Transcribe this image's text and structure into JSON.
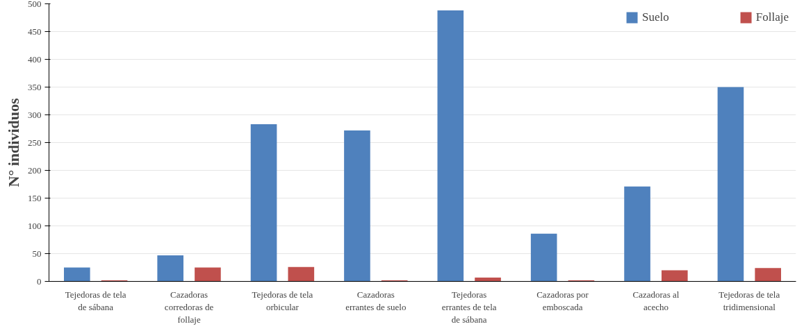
{
  "chart_data": {
    "type": "bar",
    "ylabel": "N° individuos",
    "categories": [
      "Tejedoras de tela de sábana",
      "Cazadoras corredoras de follaje",
      "Tejedoras de tela orbicular",
      "Cazadoras errantes de suelo",
      "Tejedoras errantes de tela de sábana",
      "Cazadoras por emboscada",
      "Cazadoras al acecho",
      "Tejedoras de tela tridimensional"
    ],
    "series": [
      {
        "name": "Suelo",
        "color": "#4f81bd",
        "values": [
          25,
          47,
          283,
          272,
          488,
          86,
          171,
          350
        ]
      },
      {
        "name": "Follaje",
        "color": "#c0504d",
        "values": [
          2,
          25,
          26,
          2,
          7,
          2,
          20,
          24
        ]
      }
    ],
    "ylim": [
      0,
      500
    ],
    "yticks": [
      0,
      50,
      100,
      150,
      200,
      250,
      300,
      350,
      400,
      450,
      500
    ],
    "grid": "y",
    "legend": "top right"
  }
}
